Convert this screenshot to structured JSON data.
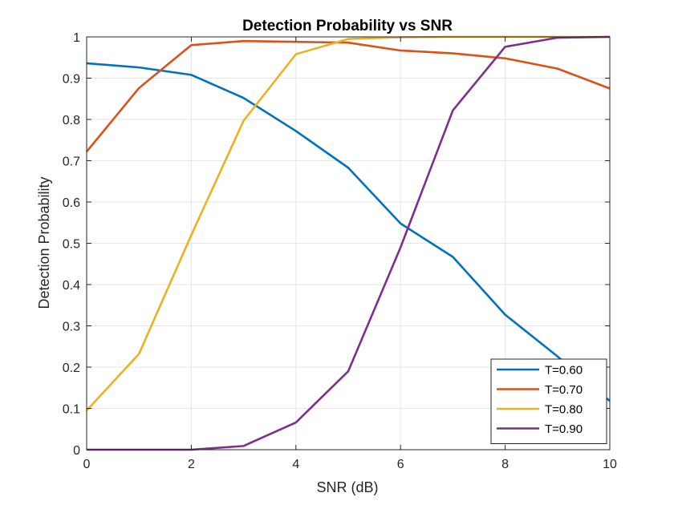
{
  "chart_data": {
    "type": "line",
    "title": "Detection Probability vs SNR",
    "xlabel": "SNR (dB)",
    "ylabel": "Detection Probability",
    "xlim": [
      0,
      10
    ],
    "ylim": [
      0,
      1
    ],
    "xticks": [
      0,
      2,
      4,
      6,
      8,
      10
    ],
    "yticks": [
      0,
      0.1,
      0.2,
      0.3,
      0.4,
      0.5,
      0.6,
      0.7,
      0.8,
      0.9,
      1
    ],
    "grid": true,
    "legend_position": "bottom-right",
    "x": [
      0,
      1,
      2,
      3,
      4,
      5,
      6,
      7,
      8,
      9,
      10
    ],
    "series": [
      {
        "name": "T=0.60",
        "color": "#0072BD",
        "values": [
          0.936,
          0.926,
          0.908,
          0.852,
          0.772,
          0.683,
          0.548,
          0.467,
          0.327,
          0.226,
          0.118
        ]
      },
      {
        "name": "T=0.70",
        "color": "#D95319",
        "values": [
          0.722,
          0.876,
          0.98,
          0.99,
          0.988,
          0.986,
          0.967,
          0.96,
          0.948,
          0.923,
          0.875
        ]
      },
      {
        "name": "T=0.80",
        "color": "#EDB120",
        "values": [
          0.095,
          0.232,
          0.52,
          0.797,
          0.958,
          0.995,
          0.999,
          1.0,
          1.0,
          1.0,
          1.0
        ]
      },
      {
        "name": "T=0.90",
        "color": "#7E2F8E",
        "values": [
          0.0,
          0.0,
          0.0,
          0.009,
          0.066,
          0.19,
          0.49,
          0.822,
          0.976,
          0.998,
          1.0
        ]
      }
    ]
  }
}
